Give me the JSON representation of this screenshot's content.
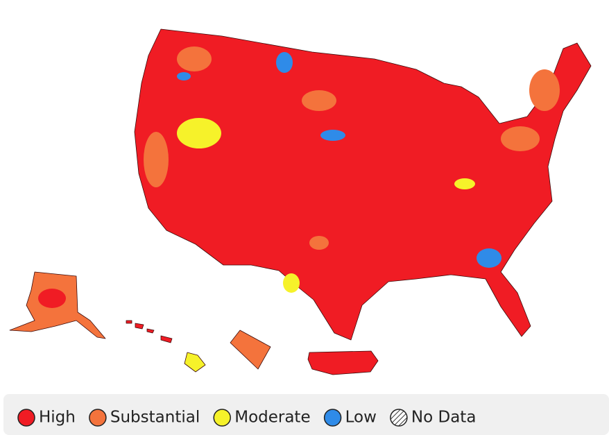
{
  "legend": {
    "items": [
      {
        "label": "High",
        "color": "#f01c24"
      },
      {
        "label": "Substantial",
        "color": "#f4733c"
      },
      {
        "label": "Moderate",
        "color": "#f6f22a"
      },
      {
        "label": "Low",
        "color": "#2f8be8"
      },
      {
        "label": "No Data",
        "pattern": "hatch"
      }
    ]
  }
}
